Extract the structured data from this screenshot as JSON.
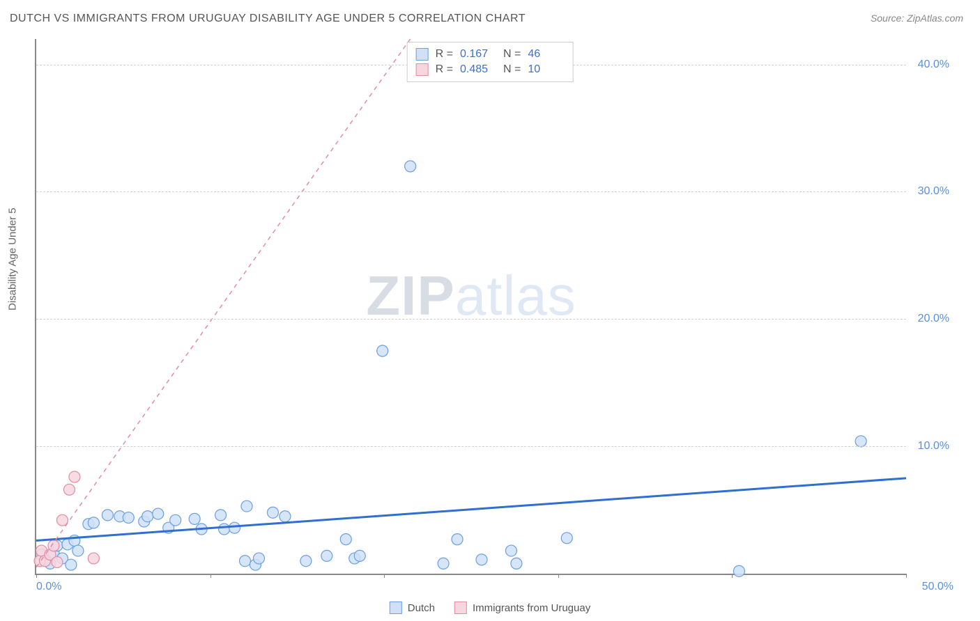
{
  "title": "DUTCH VS IMMIGRANTS FROM URUGUAY DISABILITY AGE UNDER 5 CORRELATION CHART",
  "source": "Source: ZipAtlas.com",
  "watermark_zip": "ZIP",
  "watermark_atlas": "atlas",
  "y_axis_label": "Disability Age Under 5",
  "chart": {
    "type": "scatter",
    "xlim": [
      0,
      50
    ],
    "ylim": [
      0,
      42
    ],
    "x_ticks": [
      0,
      10,
      20,
      30,
      40,
      50
    ],
    "x_tick_labels_visible": {
      "0": "0.0%",
      "50": "50.0%"
    },
    "y_ticks": [
      10,
      20,
      30,
      40
    ],
    "y_tick_labels": {
      "10": "10.0%",
      "20": "20.0%",
      "30": "30.0%",
      "40": "40.0%"
    },
    "background_color": "#ffffff",
    "grid_color": "#d0d0d0",
    "marker_radius": 8,
    "marker_stroke_width": 1.2,
    "series": [
      {
        "name": "Dutch",
        "fill": "#cfe0f7",
        "stroke": "#6a9fe0",
        "trend_stroke": "#2f6fd0",
        "trend_dash": "none",
        "trend_width": 3,
        "R": "0.167",
        "N": "46",
        "trend": {
          "x1": 0,
          "y1": 2.6,
          "x2": 50,
          "y2": 7.5
        },
        "points": [
          [
            0.3,
            1.5
          ],
          [
            0.6,
            1.0
          ],
          [
            0.8,
            0.8
          ],
          [
            1.0,
            1.6
          ],
          [
            1.2,
            2.2
          ],
          [
            1.5,
            1.2
          ],
          [
            1.8,
            2.3
          ],
          [
            2.0,
            0.7
          ],
          [
            2.2,
            2.6
          ],
          [
            2.4,
            1.8
          ],
          [
            3.0,
            3.9
          ],
          [
            3.3,
            4.0
          ],
          [
            4.1,
            4.6
          ],
          [
            4.8,
            4.5
          ],
          [
            5.3,
            4.4
          ],
          [
            6.2,
            4.1
          ],
          [
            6.4,
            4.5
          ],
          [
            7.0,
            4.7
          ],
          [
            7.6,
            3.6
          ],
          [
            8.0,
            4.2
          ],
          [
            9.1,
            4.3
          ],
          [
            9.5,
            3.5
          ],
          [
            10.6,
            4.6
          ],
          [
            10.8,
            3.5
          ],
          [
            11.4,
            3.6
          ],
          [
            12.0,
            1.0
          ],
          [
            12.1,
            5.3
          ],
          [
            12.6,
            0.7
          ],
          [
            12.8,
            1.2
          ],
          [
            13.6,
            4.8
          ],
          [
            14.3,
            4.5
          ],
          [
            15.5,
            1.0
          ],
          [
            16.7,
            1.4
          ],
          [
            17.8,
            2.7
          ],
          [
            18.3,
            1.2
          ],
          [
            18.6,
            1.4
          ],
          [
            19.9,
            17.5
          ],
          [
            21.5,
            32.0
          ],
          [
            23.4,
            0.8
          ],
          [
            24.2,
            2.7
          ],
          [
            25.6,
            1.1
          ],
          [
            27.3,
            1.8
          ],
          [
            27.6,
            0.8
          ],
          [
            30.5,
            2.8
          ],
          [
            40.4,
            0.2
          ],
          [
            47.4,
            10.4
          ]
        ]
      },
      {
        "name": "Immigrants from Uruguay",
        "fill": "#f7d6df",
        "stroke": "#e38ba3",
        "trend_stroke": "#e38ba3",
        "trend_dash": "6,6",
        "trend_width": 1.5,
        "R": "0.485",
        "N": "10",
        "trend": {
          "x1": 0,
          "y1": 0.5,
          "x2": 21.5,
          "y2": 42
        },
        "points": [
          [
            0.2,
            1.0
          ],
          [
            0.3,
            1.8
          ],
          [
            0.5,
            1.0
          ],
          [
            0.8,
            1.5
          ],
          [
            1.0,
            2.2
          ],
          [
            1.2,
            0.9
          ],
          [
            1.5,
            4.2
          ],
          [
            1.9,
            6.6
          ],
          [
            2.2,
            7.6
          ],
          [
            3.3,
            1.2
          ]
        ]
      }
    ]
  },
  "colors": {
    "axis_text": "#5b8fd9",
    "title_text": "#555555",
    "stat_value": "#3a6fd8"
  },
  "legend": {
    "items": [
      {
        "label": "Dutch",
        "fill": "#cfe0f7",
        "stroke": "#6a9fe0"
      },
      {
        "label": "Immigrants from Uruguay",
        "fill": "#f7d6df",
        "stroke": "#e38ba3"
      }
    ]
  }
}
